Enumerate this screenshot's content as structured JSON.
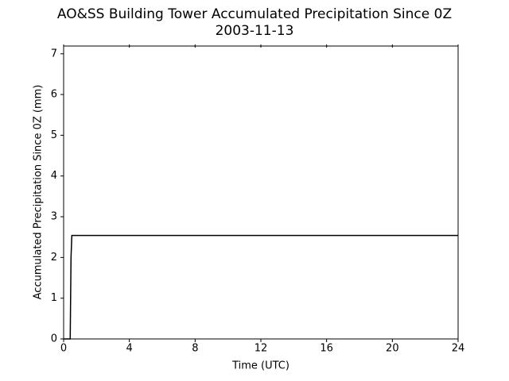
{
  "chart_data": {
    "type": "line",
    "title": "AO&SS Building Tower Accumulated Precipitation Since 0Z",
    "subtitle": "2003-11-13",
    "x_label": "Time (UTC)",
    "y_label": "Accumulated Precipitation Since 0Z (mm)",
    "x": [
      0,
      0.4,
      0.45,
      0.5,
      24
    ],
    "series": [
      {
        "name": "Accumulated Precipitation",
        "color": "#000000",
        "values": [
          0,
          0,
          2.0,
          2.54,
          2.54
        ]
      }
    ],
    "xlim": [
      0,
      24
    ],
    "xticks": [
      0,
      4,
      8,
      12,
      16,
      20,
      24
    ],
    "ylim": [
      0,
      7.19
    ],
    "yticks": [
      0,
      1,
      2,
      3,
      4,
      5,
      6,
      7
    ],
    "grid": false
  }
}
